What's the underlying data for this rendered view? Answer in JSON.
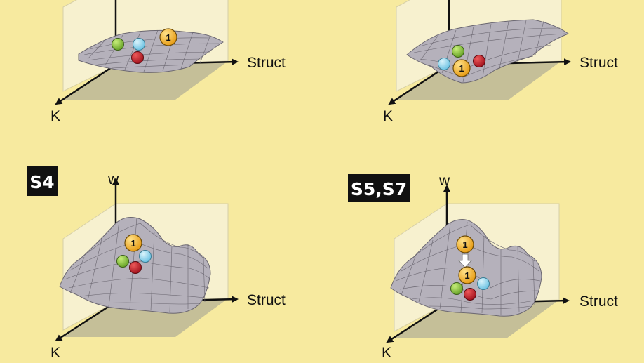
{
  "axes": {
    "x_label": "Struct",
    "y_label": "K",
    "z_label": "w"
  },
  "ball_label": "1",
  "panels": [
    {
      "id": "top-left",
      "badge": null
    },
    {
      "id": "top-right",
      "badge": null
    },
    {
      "id": "bottom-left",
      "badge": "S4"
    },
    {
      "id": "bottom-right",
      "badge": "S5,S7"
    }
  ],
  "colors": {
    "background": "#f7ea9f",
    "wall": "#f7f1cf",
    "floor": "#c5bf98",
    "surface": "#b5b1bb",
    "grid": "#6a6670",
    "green_ball": "#8ec63f",
    "blue_ball": "#9ad6ec",
    "red_ball": "#c5202e",
    "gold_ball": "#f4b233"
  }
}
